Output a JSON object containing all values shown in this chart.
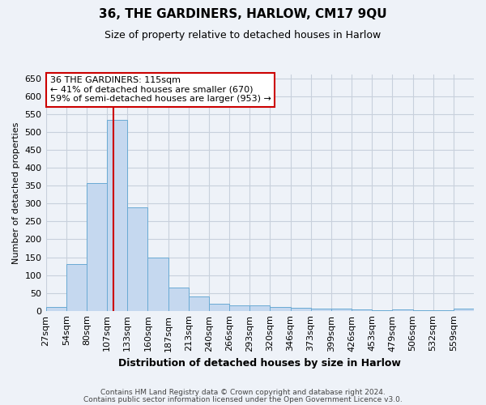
{
  "title": "36, THE GARDINERS, HARLOW, CM17 9QU",
  "subtitle": "Size of property relative to detached houses in Harlow",
  "xlabel": "Distribution of detached houses by size in Harlow",
  "ylabel": "Number of detached properties",
  "bin_labels": [
    "27sqm",
    "54sqm",
    "80sqm",
    "107sqm",
    "133sqm",
    "160sqm",
    "187sqm",
    "213sqm",
    "240sqm",
    "266sqm",
    "293sqm",
    "320sqm",
    "346sqm",
    "373sqm",
    "399sqm",
    "426sqm",
    "453sqm",
    "479sqm",
    "506sqm",
    "532sqm",
    "559sqm"
  ],
  "bar_heights": [
    10,
    130,
    357,
    535,
    290,
    150,
    65,
    40,
    20,
    15,
    15,
    10,
    8,
    5,
    5,
    4,
    1,
    4,
    1,
    1,
    5
  ],
  "bar_color": "#c5d8ef",
  "bar_edgecolor": "#6aaad4",
  "vline_bin": 3,
  "vline_color": "#cc0000",
  "annotation_text": "36 THE GARDINERS: 115sqm\n← 41% of detached houses are smaller (670)\n59% of semi-detached houses are larger (953) →",
  "annotation_box_color": "#ffffff",
  "annotation_box_edgecolor": "#cc0000",
  "ylim": [
    0,
    660
  ],
  "yticks": [
    0,
    50,
    100,
    150,
    200,
    250,
    300,
    350,
    400,
    450,
    500,
    550,
    600,
    650
  ],
  "grid_color": "#c8d0dc",
  "background_color": "#eef2f8",
  "footer_line1": "Contains HM Land Registry data © Crown copyright and database right 2024.",
  "footer_line2": "Contains public sector information licensed under the Open Government Licence v3.0."
}
